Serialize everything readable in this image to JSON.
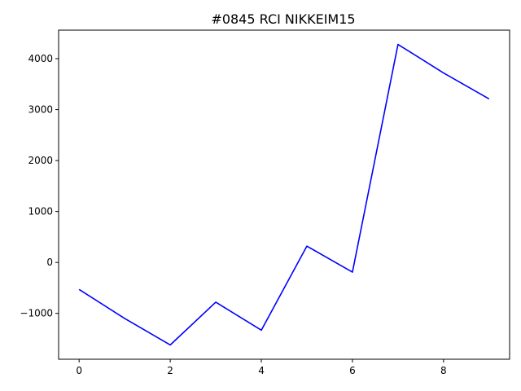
{
  "chart_data": {
    "type": "line",
    "title": "#0845 RCI NIKKEIM15",
    "xlabel": "",
    "ylabel": "",
    "x": [
      0,
      1,
      2,
      3,
      4,
      5,
      6,
      7,
      8,
      9
    ],
    "series": [
      {
        "color": "#0000ff",
        "values": [
          -530,
          -1100,
          -1620,
          -780,
          -1330,
          320,
          -190,
          4280,
          3720,
          3210
        ]
      }
    ],
    "xlim": [
      -0.45,
      9.45
    ],
    "ylim": [
      -1900,
      4560
    ],
    "xticks": [
      0,
      2,
      4,
      6,
      8
    ],
    "yticks": [
      -1000,
      0,
      1000,
      2000,
      3000,
      4000
    ],
    "ytick_labels": [
      "−1000",
      "0",
      "1000",
      "2000",
      "3000",
      "4000"
    ],
    "grid": false,
    "legend": "none"
  }
}
